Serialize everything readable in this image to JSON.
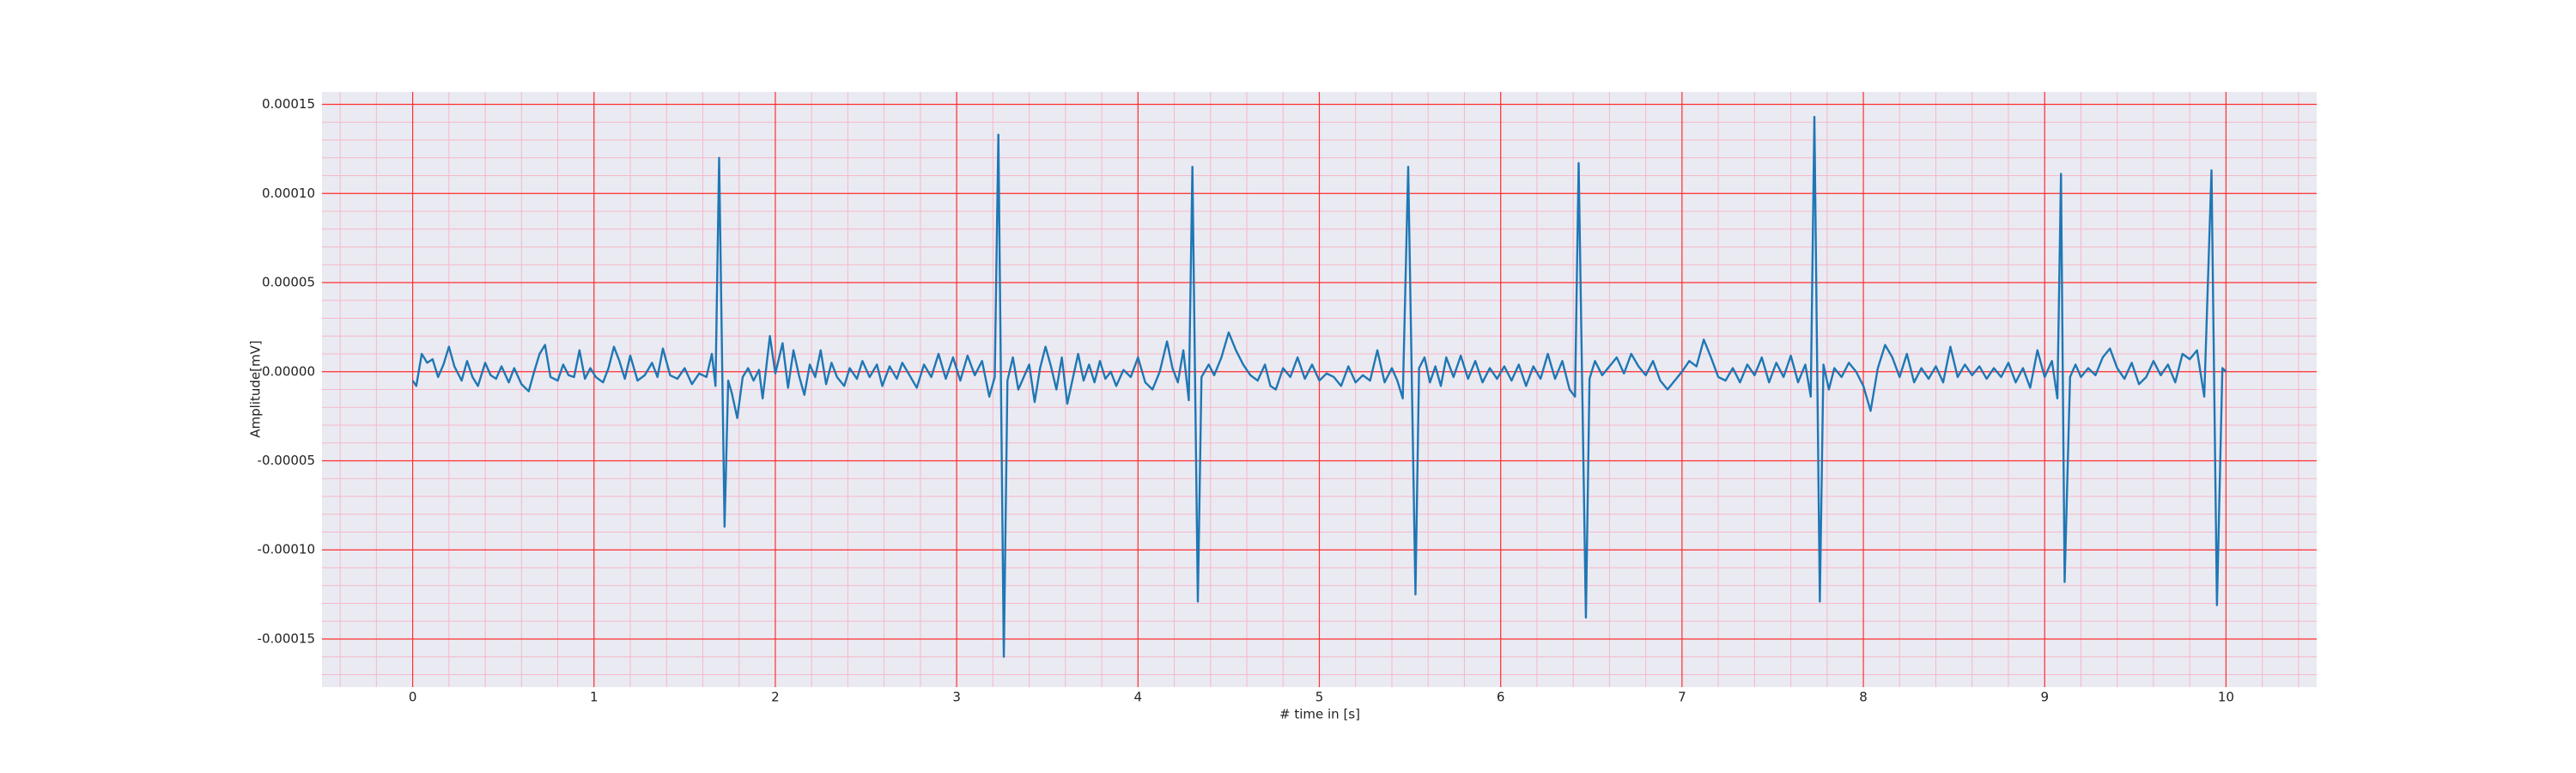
{
  "chart_data": {
    "type": "line",
    "xlabel": "# time in [s]",
    "ylabel": "Amplitude[mV]",
    "xlim": [
      -0.5,
      10.5
    ],
    "ylim": [
      -0.000177,
      0.000157
    ],
    "xticks": [
      0,
      1,
      2,
      3,
      4,
      5,
      6,
      7,
      8,
      9,
      10
    ],
    "yticks": [
      {
        "value": -0.00015,
        "label": "-0.00015"
      },
      {
        "value": -0.0001,
        "label": "-0.00010"
      },
      {
        "value": -5e-05,
        "label": "-0.00005"
      },
      {
        "value": 0,
        "label": "0.00000"
      },
      {
        "value": 5e-05,
        "label": "0.00005"
      },
      {
        "value": 0.0001,
        "label": "0.00010"
      },
      {
        "value": 0.00015,
        "label": "0.00015"
      }
    ],
    "grid": true,
    "grid_color": "#ff3030",
    "minor_grid_color": "#f5b8c8",
    "xminor": 0.2,
    "yminor": 1e-05,
    "background": "#eaeaf2",
    "series": [
      {
        "color": "#1f77b4",
        "x": [
          0,
          0.02,
          0.05,
          0.08,
          0.11,
          0.14,
          0.17,
          0.2,
          0.23,
          0.27,
          0.3,
          0.33,
          0.36,
          0.4,
          0.43,
          0.46,
          0.49,
          0.53,
          0.56,
          0.6,
          0.64,
          0.67,
          0.7,
          0.73,
          0.76,
          0.8,
          0.83,
          0.86,
          0.89,
          0.92,
          0.95,
          0.98,
          1.01,
          1.05,
          1.08,
          1.11,
          1.14,
          1.17,
          1.2,
          1.24,
          1.28,
          1.32,
          1.35,
          1.38,
          1.42,
          1.46,
          1.5,
          1.54,
          1.58,
          1.62,
          1.65,
          1.67,
          1.69,
          1.72,
          1.74,
          1.76,
          1.79,
          1.82,
          1.85,
          1.88,
          1.91,
          1.93,
          1.97,
          2,
          2.04,
          2.07,
          2.1,
          2.13,
          2.16,
          2.19,
          2.22,
          2.25,
          2.28,
          2.31,
          2.34,
          2.38,
          2.41,
          2.45,
          2.48,
          2.52,
          2.56,
          2.59,
          2.63,
          2.67,
          2.7,
          2.74,
          2.78,
          2.82,
          2.86,
          2.9,
          2.94,
          2.98,
          3.02,
          3.06,
          3.1,
          3.14,
          3.18,
          3.21,
          3.23,
          3.26,
          3.28,
          3.31,
          3.34,
          3.37,
          3.4,
          3.43,
          3.46,
          3.49,
          3.52,
          3.55,
          3.58,
          3.61,
          3.64,
          3.67,
          3.7,
          3.73,
          3.76,
          3.79,
          3.82,
          3.85,
          3.88,
          3.92,
          3.96,
          4,
          4.04,
          4.08,
          4.12,
          4.16,
          4.19,
          4.22,
          4.25,
          4.28,
          4.3,
          4.33,
          4.35,
          4.39,
          4.42,
          4.46,
          4.5,
          4.54,
          4.58,
          4.62,
          4.66,
          4.7,
          4.73,
          4.76,
          4.8,
          4.84,
          4.88,
          4.92,
          4.96,
          5,
          5.04,
          5.08,
          5.12,
          5.16,
          5.2,
          5.24,
          5.28,
          5.32,
          5.36,
          5.4,
          5.43,
          5.46,
          5.49,
          5.53,
          5.55,
          5.58,
          5.61,
          5.64,
          5.67,
          5.7,
          5.74,
          5.78,
          5.82,
          5.86,
          5.9,
          5.94,
          5.98,
          6.02,
          6.06,
          6.1,
          6.14,
          6.18,
          6.22,
          6.26,
          6.3,
          6.34,
          6.38,
          6.41,
          6.43,
          6.47,
          6.49,
          6.52,
          6.56,
          6.6,
          6.64,
          6.68,
          6.72,
          6.76,
          6.8,
          6.84,
          6.88,
          6.92,
          6.96,
          7,
          7.04,
          7.08,
          7.12,
          7.16,
          7.2,
          7.24,
          7.28,
          7.32,
          7.36,
          7.4,
          7.44,
          7.48,
          7.52,
          7.56,
          7.6,
          7.64,
          7.68,
          7.71,
          7.73,
          7.76,
          7.78,
          7.81,
          7.84,
          7.88,
          7.92,
          7.96,
          8,
          8.04,
          8.08,
          8.12,
          8.16,
          8.2,
          8.24,
          8.28,
          8.32,
          8.36,
          8.4,
          8.44,
          8.48,
          8.52,
          8.56,
          8.6,
          8.64,
          8.68,
          8.72,
          8.76,
          8.8,
          8.84,
          8.88,
          8.92,
          8.96,
          9,
          9.04,
          9.07,
          9.09,
          9.11,
          9.14,
          9.17,
          9.2,
          9.24,
          9.28,
          9.32,
          9.36,
          9.4,
          9.44,
          9.48,
          9.52,
          9.56,
          9.6,
          9.64,
          9.68,
          9.72,
          9.76,
          9.8,
          9.84,
          9.88,
          9.92,
          9.95,
          9.98,
          10
        ],
        "values": [
          -5e-06,
          -8e-06,
          1e-05,
          5e-06,
          7e-06,
          -3e-06,
          4e-06,
          1.4e-05,
          3e-06,
          -5e-06,
          6e-06,
          -3e-06,
          -8e-06,
          5e-06,
          -2e-06,
          -4e-06,
          3e-06,
          -6e-06,
          2e-06,
          -7e-06,
          -1.1e-05,
          0,
          1e-05,
          1.5e-05,
          -3e-06,
          -5e-06,
          4e-06,
          -2e-06,
          -3e-06,
          1.2e-05,
          -4e-06,
          2e-06,
          -3e-06,
          -6e-06,
          2e-06,
          1.4e-05,
          6e-06,
          -4e-06,
          9e-06,
          -5e-06,
          -2e-06,
          5e-06,
          -3e-06,
          1.3e-05,
          -2e-06,
          -4e-06,
          2e-06,
          -7e-06,
          -1e-06,
          -3e-06,
          1e-05,
          -8e-06,
          0.00012,
          -8.7e-05,
          -5e-06,
          -1.2e-05,
          -2.6e-05,
          -3e-06,
          2e-06,
          -5e-06,
          1e-06,
          -1.5e-05,
          2e-05,
          -1e-06,
          1.6e-05,
          -9e-06,
          1.2e-05,
          -2e-06,
          -1.3e-05,
          4e-06,
          -3e-06,
          1.2e-05,
          -7e-06,
          5e-06,
          -3e-06,
          -8e-06,
          2e-06,
          -4e-06,
          6e-06,
          -3e-06,
          4e-06,
          -8e-06,
          3e-06,
          -4e-06,
          5e-06,
          -2e-06,
          -9e-06,
          4e-06,
          -3e-06,
          1e-05,
          -4e-06,
          8e-06,
          -5e-06,
          9e-06,
          -2e-06,
          6e-06,
          -1.4e-05,
          -3e-06,
          0.000133,
          -0.00016,
          -5e-06,
          8e-06,
          -1e-05,
          -3e-06,
          4e-06,
          -1.7e-05,
          2e-06,
          1.4e-05,
          3e-06,
          -1e-05,
          8e-06,
          -1.8e-05,
          -4e-06,
          1e-05,
          -5e-06,
          4e-06,
          -6e-06,
          6e-06,
          -4e-06,
          0,
          -8e-06,
          1e-06,
          -3e-06,
          8e-06,
          -6e-06,
          -1e-05,
          0,
          1.7e-05,
          2e-06,
          -6e-06,
          1.2e-05,
          -1.6e-05,
          0.000115,
          -0.000129,
          -3e-06,
          4e-06,
          -2e-06,
          8e-06,
          2.2e-05,
          1.2e-05,
          4e-06,
          -2e-06,
          -5e-06,
          4e-06,
          -8e-06,
          -1e-05,
          2e-06,
          -3e-06,
          8e-06,
          -4e-06,
          4e-06,
          -5e-06,
          -1e-06,
          -3e-06,
          -8e-06,
          3e-06,
          -6e-06,
          -2e-06,
          -5e-06,
          1.2e-05,
          -6e-06,
          2e-06,
          -5e-06,
          -1.5e-05,
          0.000115,
          -0.000125,
          2e-06,
          8e-06,
          -6e-06,
          3e-06,
          -8e-06,
          8e-06,
          -3e-06,
          9e-06,
          -4e-06,
          6e-06,
          -6e-06,
          2e-06,
          -4e-06,
          3e-06,
          -5e-06,
          4e-06,
          -8e-06,
          3e-06,
          -4e-06,
          1e-05,
          -4e-06,
          6e-06,
          -1e-05,
          -1.4e-05,
          0.000117,
          -0.000138,
          -4e-06,
          6e-06,
          -2e-06,
          3e-06,
          8e-06,
          -1e-06,
          1e-05,
          3e-06,
          -2e-06,
          6e-06,
          -5e-06,
          -1e-05,
          -5e-06,
          0,
          6e-06,
          3e-06,
          1.8e-05,
          8e-06,
          -3e-06,
          -5e-06,
          2e-06,
          -6e-06,
          4e-06,
          -2e-06,
          8e-06,
          -6e-06,
          5e-06,
          -3e-06,
          9e-06,
          -6e-06,
          4e-06,
          -1.4e-05,
          0.000143,
          -0.000129,
          4e-06,
          -1e-05,
          2e-06,
          -3e-06,
          5e-06,
          0,
          -8e-06,
          -2.2e-05,
          2e-06,
          1.5e-05,
          8e-06,
          -3e-06,
          1e-05,
          -6e-06,
          2e-06,
          -4e-06,
          3e-06,
          -6e-06,
          1.4e-05,
          -3e-06,
          4e-06,
          -2e-06,
          3e-06,
          -4e-06,
          2e-06,
          -3e-06,
          5e-06,
          -6e-06,
          2e-06,
          -9e-06,
          1.2e-05,
          -3e-06,
          6e-06,
          -1.5e-05,
          0.000111,
          -0.000118,
          -3e-06,
          4e-06,
          -3e-06,
          2e-06,
          -2e-06,
          8e-06,
          1.3e-05,
          2e-06,
          -4e-06,
          5e-06,
          -7e-06,
          -3e-06,
          6e-06,
          -2e-06,
          4e-06,
          -6e-06,
          1e-05,
          7e-06,
          1.2e-05,
          -1.4e-05,
          0.000113,
          -0.000131,
          2e-06,
          0
        ]
      }
    ]
  }
}
